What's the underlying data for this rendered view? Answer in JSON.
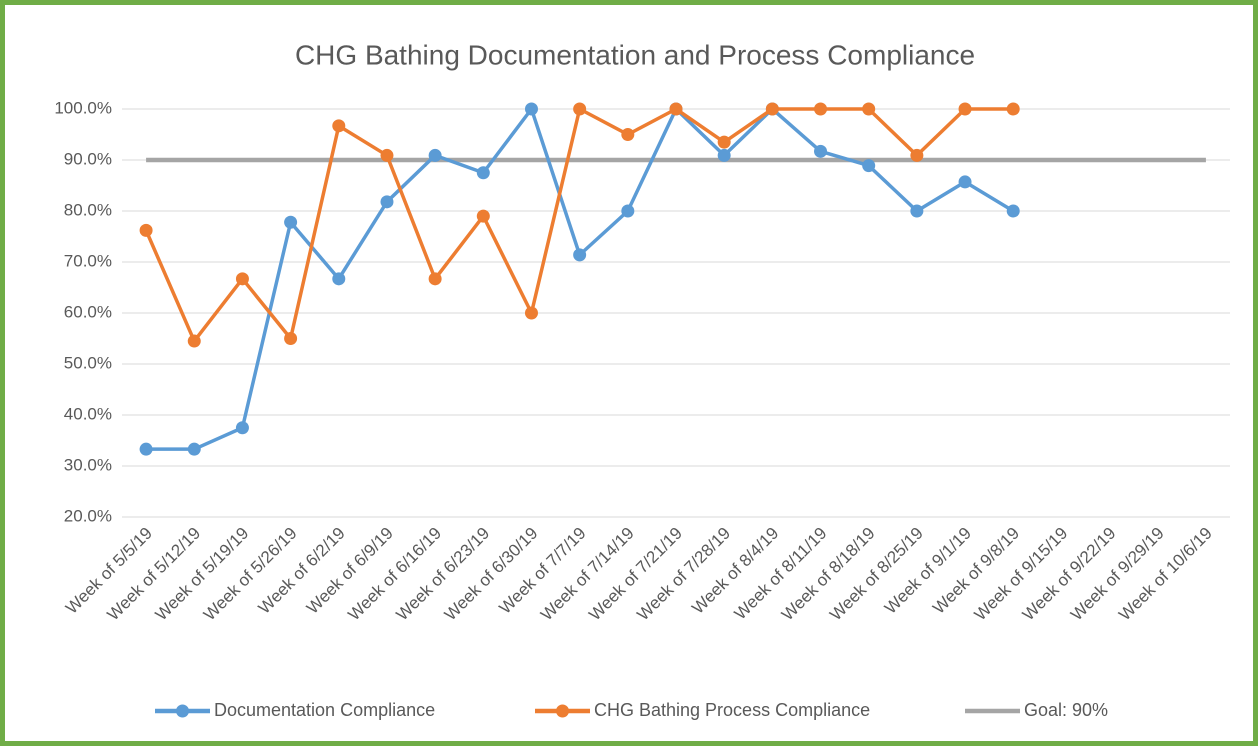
{
  "chart_data": {
    "type": "line",
    "title": "CHG Bathing Documentation and Process Compliance",
    "categories": [
      "Week of 5/5/19",
      "Week of 5/12/19",
      "Week of 5/19/19",
      "Week of 5/26/19",
      "Week of 6/2/19",
      "Week of 6/9/19",
      "Week of 6/16/19",
      "Week of 6/23/19",
      "Week of 6/30/19",
      "Week of 7/7/19",
      "Week of 7/14/19",
      "Week of 7/21/19",
      "Week of 7/28/19",
      "Week of 8/4/19",
      "Week of 8/11/19",
      "Week of 8/18/19",
      "Week of 8/25/19",
      "Week of 9/1/19",
      "Week of 9/8/19",
      "Week of 9/15/19",
      "Week of 9/22/19",
      "Week of 9/29/19",
      "Week of 10/6/19"
    ],
    "series": [
      {
        "name": "Documentation Compliance",
        "color": "#5b9bd5",
        "markers": true,
        "values": [
          33.3,
          33.3,
          37.5,
          77.8,
          66.7,
          81.8,
          90.9,
          87.5,
          100,
          71.4,
          80,
          100,
          90.9,
          100,
          91.7,
          88.9,
          80,
          85.7,
          80,
          null,
          null,
          null,
          null
        ]
      },
      {
        "name": "CHG Bathing Process Compliance",
        "color": "#ed7d31",
        "markers": true,
        "values": [
          76.2,
          54.5,
          66.7,
          55,
          96.7,
          90.9,
          66.7,
          79,
          60,
          100,
          95,
          100,
          93.5,
          100,
          100,
          100,
          90.9,
          100,
          100,
          null,
          null,
          null,
          null
        ]
      },
      {
        "name": "Goal: 90%",
        "color": "#a5a5a5",
        "markers": false,
        "values": [
          90,
          90,
          90,
          90,
          90,
          90,
          90,
          90,
          90,
          90,
          90,
          90,
          90,
          90,
          90,
          90,
          90,
          90,
          90,
          90,
          90,
          90,
          90
        ]
      }
    ],
    "ylim": [
      20,
      100
    ],
    "yticks": [
      {
        "value": 20,
        "label": "20.0%"
      },
      {
        "value": 30,
        "label": "30.0%"
      },
      {
        "value": 40,
        "label": "40.0%"
      },
      {
        "value": 50,
        "label": "50.0%"
      },
      {
        "value": 60,
        "label": "60.0%"
      },
      {
        "value": 70,
        "label": "70.0%"
      },
      {
        "value": 80,
        "label": "80.0%"
      },
      {
        "value": 90,
        "label": "90.0%"
      },
      {
        "value": 100,
        "label": "100.0%"
      }
    ],
    "grid": true,
    "legend": "bottom"
  }
}
